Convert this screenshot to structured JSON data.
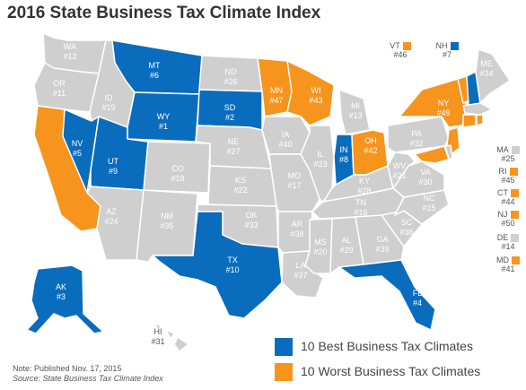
{
  "title": "2016 State Business Tax Climate Index",
  "colors": {
    "best": "#0a6cbd",
    "worst": "#f7941d",
    "other": "#cfcfcf"
  },
  "legend": {
    "best": "10 Best Business Tax Climates",
    "worst": "10 Worst Business Tax Climates"
  },
  "note": {
    "line1": "Note: Published Nov. 17, 2015",
    "line2": "Source: State Business Tax Climate Index"
  },
  "states": {
    "WA": {
      "abbr": "WA",
      "rank": "#12",
      "cat": "other"
    },
    "OR": {
      "abbr": "OR",
      "rank": "#11",
      "cat": "other"
    },
    "CA": {
      "abbr": "CA",
      "rank": "#48",
      "cat": "worst"
    },
    "ID": {
      "abbr": "ID",
      "rank": "#19",
      "cat": "other"
    },
    "NV": {
      "abbr": "NV",
      "rank": "#5",
      "cat": "best"
    },
    "MT": {
      "abbr": "MT",
      "rank": "#6",
      "cat": "best"
    },
    "WY": {
      "abbr": "WY",
      "rank": "#1",
      "cat": "best"
    },
    "UT": {
      "abbr": "UT",
      "rank": "#9",
      "cat": "best"
    },
    "AZ": {
      "abbr": "AZ",
      "rank": "#24",
      "cat": "other"
    },
    "CO": {
      "abbr": "CO",
      "rank": "#18",
      "cat": "other"
    },
    "NM": {
      "abbr": "NM",
      "rank": "#35",
      "cat": "other"
    },
    "ND": {
      "abbr": "ND",
      "rank": "#26",
      "cat": "other"
    },
    "SD": {
      "abbr": "SD",
      "rank": "#2",
      "cat": "best"
    },
    "NE": {
      "abbr": "NE",
      "rank": "#27",
      "cat": "other"
    },
    "KS": {
      "abbr": "KS",
      "rank": "#22",
      "cat": "other"
    },
    "OK": {
      "abbr": "OK",
      "rank": "#33",
      "cat": "other"
    },
    "TX": {
      "abbr": "TX",
      "rank": "#10",
      "cat": "best"
    },
    "MN": {
      "abbr": "MN",
      "rank": "#47",
      "cat": "worst"
    },
    "IA": {
      "abbr": "IA",
      "rank": "#40",
      "cat": "other"
    },
    "MO": {
      "abbr": "MO",
      "rank": "#17",
      "cat": "other"
    },
    "AR": {
      "abbr": "AR",
      "rank": "#38",
      "cat": "other"
    },
    "LA": {
      "abbr": "LA",
      "rank": "#37",
      "cat": "other"
    },
    "WI": {
      "abbr": "WI",
      "rank": "#43",
      "cat": "worst"
    },
    "IL": {
      "abbr": "IL",
      "rank": "#23",
      "cat": "other"
    },
    "MI": {
      "abbr": "MI",
      "rank": "#13",
      "cat": "other"
    },
    "IN": {
      "abbr": "IN",
      "rank": "#8",
      "cat": "best"
    },
    "OH": {
      "abbr": "OH",
      "rank": "#42",
      "cat": "worst"
    },
    "KY": {
      "abbr": "KY",
      "rank": "#28",
      "cat": "other"
    },
    "TN": {
      "abbr": "TN",
      "rank": "#16",
      "cat": "other"
    },
    "MS": {
      "abbr": "MS",
      "rank": "#20",
      "cat": "other"
    },
    "AL": {
      "abbr": "AL",
      "rank": "#29",
      "cat": "other"
    },
    "GA": {
      "abbr": "GA",
      "rank": "#39",
      "cat": "other"
    },
    "FL": {
      "abbr": "FL",
      "rank": "#4",
      "cat": "best"
    },
    "SC": {
      "abbr": "SC",
      "rank": "#36",
      "cat": "other"
    },
    "NC": {
      "abbr": "NC",
      "rank": "#15",
      "cat": "other"
    },
    "VA": {
      "abbr": "VA",
      "rank": "#30",
      "cat": "other"
    },
    "WV": {
      "abbr": "WV",
      "rank": "#21",
      "cat": "other"
    },
    "PA": {
      "abbr": "PA",
      "rank": "#32",
      "cat": "other"
    },
    "NY": {
      "abbr": "NY",
      "rank": "#49",
      "cat": "worst"
    },
    "ME": {
      "abbr": "ME",
      "rank": "#34",
      "cat": "other"
    },
    "AK": {
      "abbr": "AK",
      "rank": "#3",
      "cat": "best"
    },
    "HI": {
      "abbr": "HI",
      "rank": "#31",
      "cat": "other"
    },
    "VT": {
      "abbr": "VT",
      "rank": "#46",
      "cat": "worst"
    },
    "NH": {
      "abbr": "NH",
      "rank": "#7",
      "cat": "best"
    },
    "MA": {
      "abbr": "MA",
      "rank": "#25",
      "cat": "other"
    },
    "RI": {
      "abbr": "RI",
      "rank": "#45",
      "cat": "worst"
    },
    "CT": {
      "abbr": "CT",
      "rank": "#44",
      "cat": "worst"
    },
    "NJ": {
      "abbr": "NJ",
      "rank": "#50",
      "cat": "worst"
    },
    "DE": {
      "abbr": "DE",
      "rank": "#14",
      "cat": "other"
    },
    "MD": {
      "abbr": "MD",
      "rank": "#41",
      "cat": "worst"
    }
  }
}
